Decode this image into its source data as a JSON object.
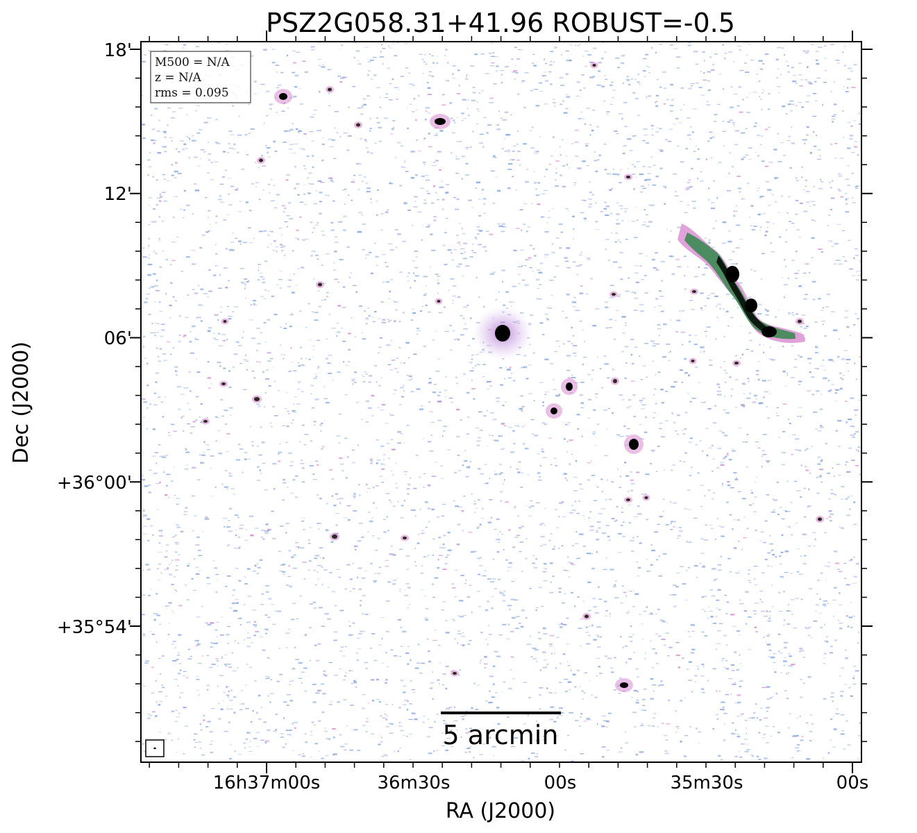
{
  "title": "PSZ2G058.31+41.96 ROBUST=-0.5",
  "axes": {
    "xlabel": "RA (J2000)",
    "ylabel": "Dec (J2000)",
    "x_ticks": [
      "16h37m00s",
      "36m30s",
      "00s",
      "35m30s",
      "00s"
    ],
    "y_ticks": [
      "18'",
      "12'",
      "06'",
      "+36°00'",
      "+35°54'"
    ]
  },
  "info_box": {
    "mass": "M500 = N/A",
    "redshift": "z = N/A",
    "rms": "rms = 0.095"
  },
  "scale_bar": {
    "label": "5 arcmin",
    "length_arcmin": 5
  },
  "colors": {
    "noise_blue": "#8aa8dc",
    "noise_purple": "#b79bd8",
    "emission_pink": "#d98ad0",
    "emission_green": "#2e6b3e",
    "source_core": "#000000"
  }
}
